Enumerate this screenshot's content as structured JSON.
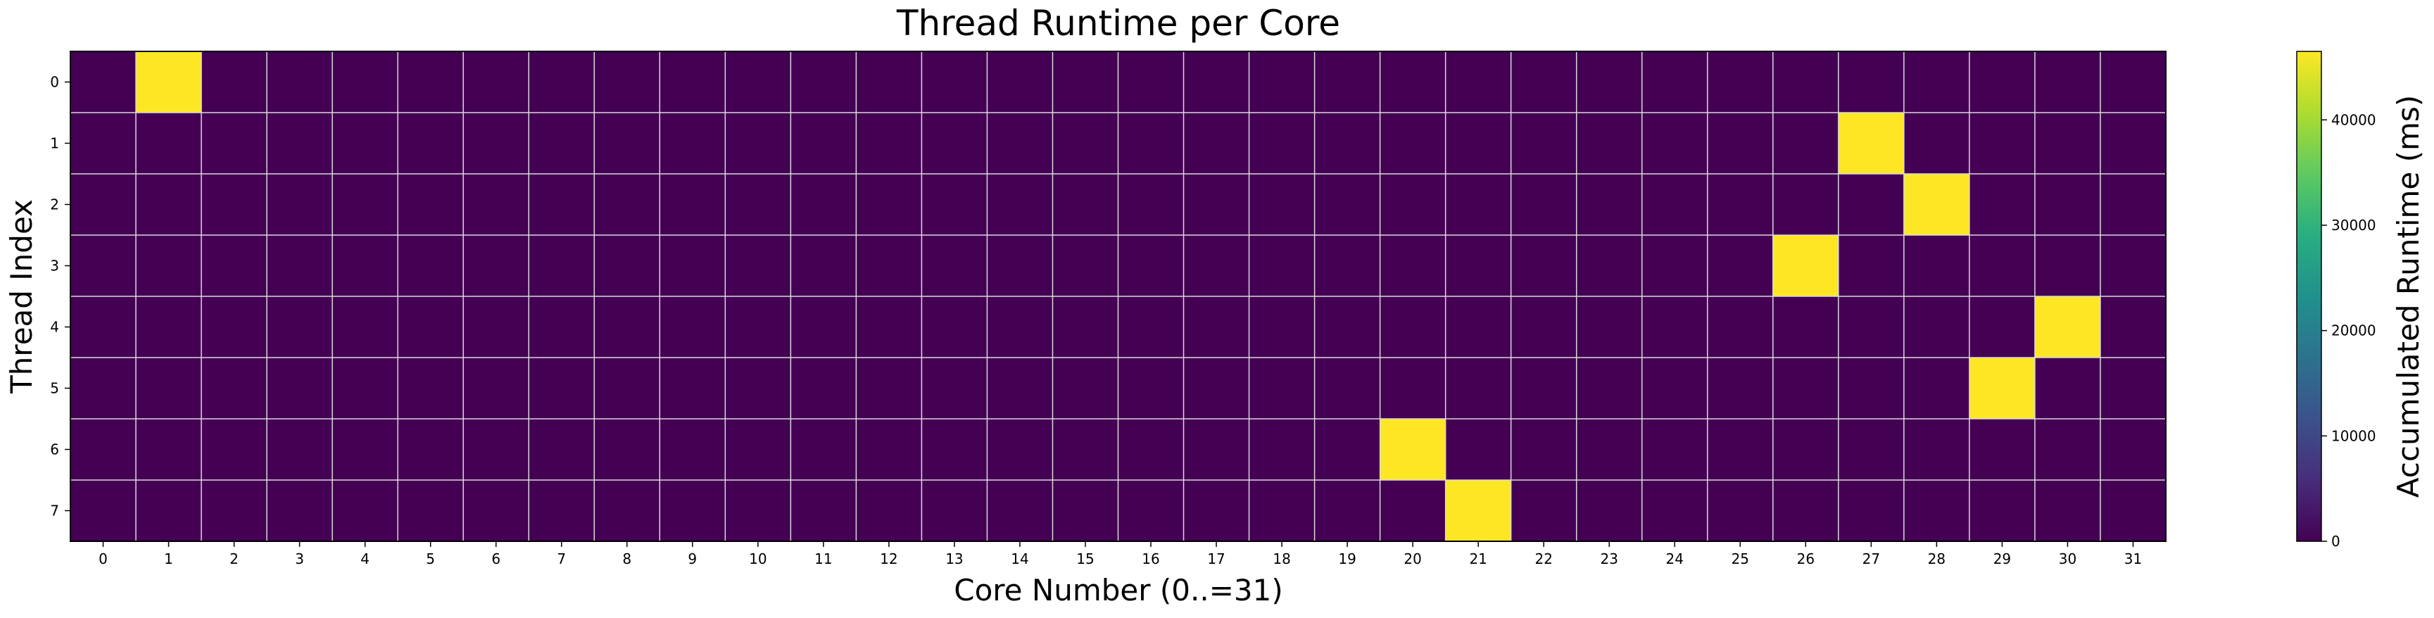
{
  "chart_data": {
    "type": "heatmap",
    "title": "Thread Runtime per Core",
    "xlabel": "Core Number (0..=31)",
    "ylabel": "Thread Index",
    "x_categories": [
      "0",
      "1",
      "2",
      "3",
      "4",
      "5",
      "6",
      "7",
      "8",
      "9",
      "10",
      "11",
      "12",
      "13",
      "14",
      "15",
      "16",
      "17",
      "18",
      "19",
      "20",
      "21",
      "22",
      "23",
      "24",
      "25",
      "26",
      "27",
      "28",
      "29",
      "30",
      "31"
    ],
    "y_categories": [
      "0",
      "1",
      "2",
      "3",
      "4",
      "5",
      "6",
      "7"
    ],
    "values": [
      [
        0,
        46500,
        0,
        0,
        0,
        0,
        0,
        0,
        0,
        0,
        0,
        0,
        0,
        0,
        0,
        0,
        0,
        0,
        0,
        0,
        0,
        0,
        0,
        0,
        0,
        0,
        0,
        0,
        0,
        0,
        0,
        0
      ],
      [
        0,
        0,
        0,
        0,
        0,
        0,
        0,
        0,
        0,
        0,
        0,
        0,
        0,
        0,
        0,
        0,
        0,
        0,
        0,
        0,
        0,
        0,
        0,
        0,
        0,
        0,
        0,
        46500,
        0,
        0,
        0,
        0
      ],
      [
        0,
        0,
        0,
        0,
        0,
        0,
        0,
        0,
        0,
        0,
        0,
        0,
        0,
        0,
        0,
        0,
        0,
        0,
        0,
        0,
        0,
        0,
        0,
        0,
        0,
        0,
        0,
        0,
        46500,
        0,
        0,
        0
      ],
      [
        0,
        0,
        0,
        0,
        0,
        0,
        0,
        0,
        0,
        0,
        0,
        0,
        0,
        0,
        0,
        0,
        0,
        0,
        0,
        0,
        0,
        0,
        0,
        0,
        0,
        0,
        46500,
        0,
        0,
        0,
        0,
        0
      ],
      [
        0,
        0,
        0,
        0,
        0,
        0,
        0,
        0,
        0,
        0,
        0,
        0,
        0,
        0,
        0,
        0,
        0,
        0,
        0,
        0,
        0,
        0,
        0,
        0,
        0,
        0,
        0,
        0,
        0,
        0,
        46500,
        0
      ],
      [
        0,
        0,
        0,
        0,
        0,
        0,
        0,
        0,
        0,
        0,
        0,
        0,
        0,
        0,
        0,
        0,
        0,
        0,
        0,
        0,
        0,
        0,
        0,
        0,
        0,
        0,
        0,
        0,
        0,
        46500,
        0,
        0
      ],
      [
        0,
        0,
        0,
        0,
        0,
        0,
        0,
        0,
        0,
        0,
        0,
        0,
        0,
        0,
        0,
        0,
        0,
        0,
        0,
        0,
        46500,
        0,
        0,
        0,
        0,
        0,
        0,
        0,
        0,
        0,
        0,
        0
      ],
      [
        0,
        0,
        0,
        0,
        0,
        0,
        0,
        0,
        0,
        0,
        0,
        0,
        0,
        0,
        0,
        0,
        0,
        0,
        0,
        0,
        0,
        46500,
        0,
        0,
        0,
        0,
        0,
        0,
        0,
        0,
        0,
        0
      ]
    ],
    "colorbar": {
      "label": "Accumulated Runtime (ms)",
      "range": [
        0,
        46500
      ],
      "ticks": [
        0,
        10000,
        20000,
        30000,
        40000
      ],
      "colormap": "viridis"
    },
    "grid": true
  }
}
